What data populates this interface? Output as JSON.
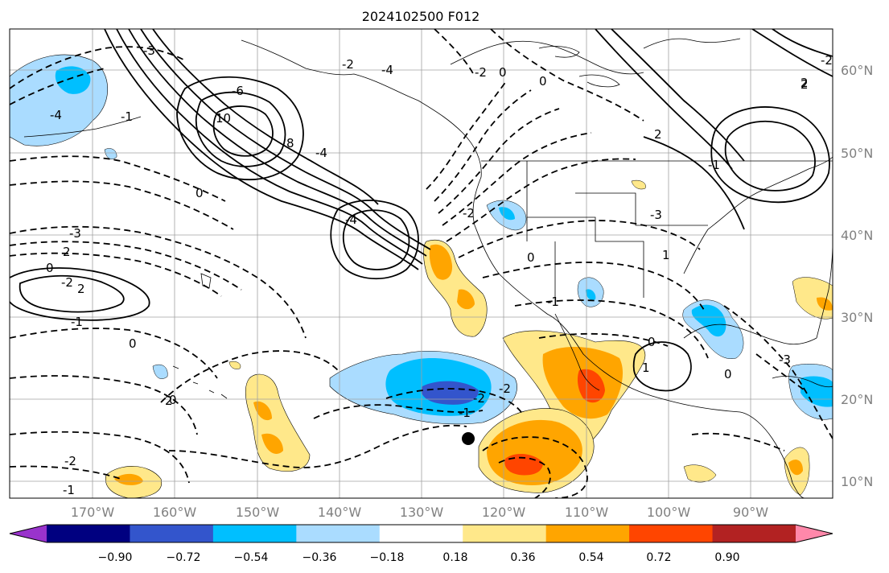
{
  "title": "2024102500 F012",
  "lat_labels": [
    "60°N",
    "50°N",
    "40°N",
    "30°N",
    "20°N",
    "10°N"
  ],
  "lon_labels": [
    "170°W",
    "160°W",
    "150°W",
    "140°W",
    "130°W",
    "120°W",
    "110°W",
    "100°W",
    "90°W"
  ],
  "colorbar": {
    "tick_labels": [
      "−0.90",
      "−0.72",
      "−0.54",
      "−0.36",
      "−0.18",
      "0.18",
      "0.36",
      "0.54",
      "0.72",
      "0.90"
    ],
    "colors": [
      "#9933cc",
      "#000080",
      "#3355cc",
      "#00bfff",
      "#aadcff",
      "#ffffff",
      "#ffe88a",
      "#ffa500",
      "#ff4500",
      "#b22222",
      "#ff88aa"
    ]
  },
  "contour_labels": [
    "-3",
    "-4",
    "-6",
    "10",
    "8",
    "-4",
    "-4",
    "0",
    "0",
    "-2",
    "-1",
    "2",
    "-4",
    "2",
    "-2",
    "-3",
    "2",
    "0",
    "-3",
    "-2",
    "0",
    "2",
    "2",
    "1",
    "-1",
    "0",
    "0",
    "-3",
    "-1",
    "0",
    "-2",
    "-2",
    "-1",
    "-2",
    "-2",
    "1",
    "0",
    "2",
    "-1",
    "0",
    "-2",
    "-1"
  ],
  "colors": {
    "ocean_bg": "#ffffff",
    "contour": "#000000",
    "grid": "#a0a0a0",
    "marker": "#000000"
  }
}
